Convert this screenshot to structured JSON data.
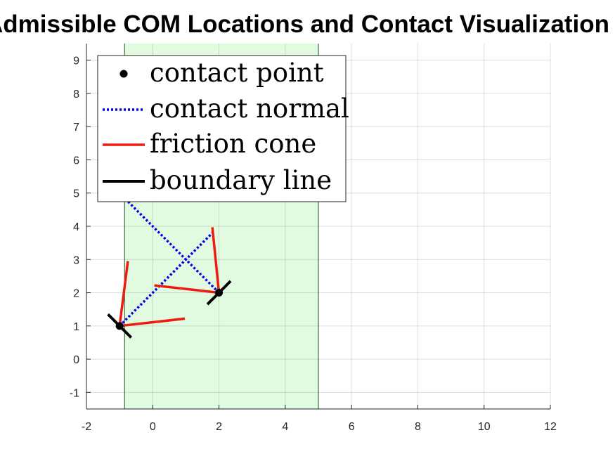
{
  "chart_data": {
    "type": "line",
    "title": "Admissible COM Locations and Contact Visualization",
    "xlabel": "",
    "ylabel": "",
    "xlim": [
      -2,
      12
    ],
    "ylim": [
      -1.5,
      9.5
    ],
    "xticks": [
      -2,
      0,
      2,
      4,
      6,
      8,
      10,
      12
    ],
    "yticks": [
      -1,
      0,
      1,
      2,
      3,
      4,
      5,
      6,
      7,
      8,
      9
    ],
    "grid": true,
    "legend_position": "top-left",
    "admissible_region": {
      "x_min": -0.85,
      "x_max": 5.0,
      "color": "#e0fbe0",
      "edge_color": "#2a4a2a"
    },
    "series": [
      {
        "name": "contact point",
        "kind": "marker",
        "color": "#000000",
        "x": [
          -1.0,
          2.0
        ],
        "y": [
          1.0,
          2.0
        ]
      },
      {
        "name": "contact normal",
        "kind": "dotted",
        "color": "#0000ee",
        "segments": [
          [
            [
              -1.0,
              1.0
            ],
            [
              1.8,
              3.8
            ]
          ],
          [
            [
              2.0,
              2.0
            ],
            [
              -0.85,
              4.85
            ]
          ]
        ]
      },
      {
        "name": "friction cone",
        "kind": "solid",
        "color": "#ee1c0e",
        "segments": [
          [
            [
              -1.0,
              1.0
            ],
            [
              -0.75,
              2.95
            ]
          ],
          [
            [
              -1.0,
              1.0
            ],
            [
              0.97,
              1.22
            ]
          ],
          [
            [
              2.0,
              2.0
            ],
            [
              1.8,
              3.97
            ]
          ],
          [
            [
              2.0,
              2.0
            ],
            [
              0.05,
              2.22
            ]
          ]
        ]
      },
      {
        "name": "boundary line",
        "kind": "solid",
        "color": "#000000",
        "segments": [
          [
            [
              -1.35,
              1.35
            ],
            [
              -0.65,
              0.65
            ]
          ],
          [
            [
              1.65,
              1.65
            ],
            [
              2.35,
              2.35
            ]
          ]
        ]
      }
    ]
  }
}
